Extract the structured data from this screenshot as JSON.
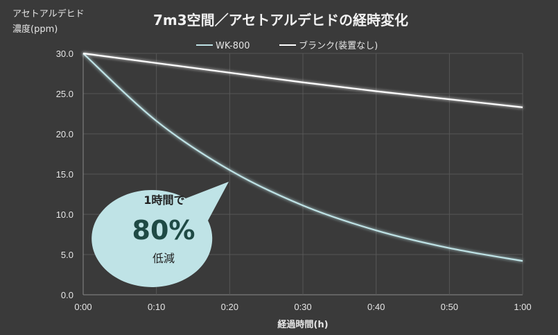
{
  "chart_data": {
    "type": "line",
    "title": "7m3空間／アセトアルデヒドの経時変化",
    "ylabel_line1": "アセトアルデヒド",
    "ylabel_line2": "濃度(ppm)",
    "xlabel": "経過時間(h)",
    "x_ticks": [
      "0:00",
      "0:10",
      "0:20",
      "0:30",
      "0:40",
      "0:50",
      "1:00"
    ],
    "y_ticks": [
      "0.0",
      "5.0",
      "10.0",
      "15.0",
      "20.0",
      "25.0",
      "30.0"
    ],
    "xlim": [
      0,
      60
    ],
    "ylim": [
      0,
      30
    ],
    "grid": true,
    "legend_position": "top-center",
    "x": [
      0,
      10,
      20,
      30,
      40,
      50,
      60
    ],
    "series": [
      {
        "name": "WK-800",
        "color": "#bfe3e6",
        "values": [
          30.0,
          21.6,
          15.5,
          11.1,
          8.0,
          5.8,
          4.2
        ]
      },
      {
        "name": "ブランク(装置なし)",
        "color": "#ffffff",
        "values": [
          30.0,
          28.8,
          27.6,
          26.4,
          25.3,
          24.3,
          23.3
        ]
      }
    ],
    "annotation": {
      "line1": "1時間で",
      "line2": "80%",
      "line3": "低減",
      "fill": "#bfe3e6"
    }
  }
}
